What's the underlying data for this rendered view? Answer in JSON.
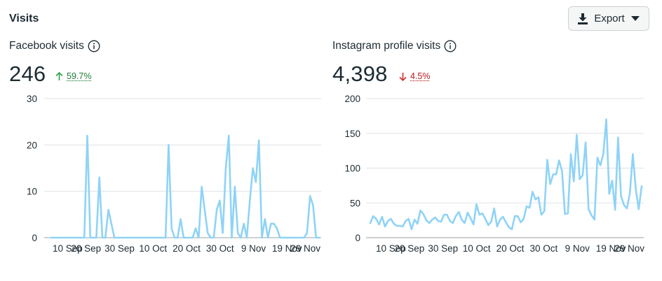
{
  "section_title": "Visits",
  "export_label": "Export",
  "icons": {
    "export": "download-icon",
    "dropdown": "caret-down-icon",
    "info": "info-icon",
    "up": "arrow-up-icon",
    "down": "arrow-down-icon"
  },
  "colors": {
    "line": "#8fd3f7",
    "up": "#31a24c",
    "down": "#d32f2f"
  },
  "facebook": {
    "title": "Facebook visits",
    "value": "246",
    "delta": "59.7%",
    "direction": "up"
  },
  "instagram": {
    "title": "Instagram profile visits",
    "value": "4,398",
    "delta": "4.5%",
    "direction": "down"
  },
  "chart_data": [
    {
      "type": "line",
      "title": "Facebook visits",
      "ylim": [
        0,
        30
      ],
      "yticks": [
        0,
        10,
        20,
        30
      ],
      "xticks": [
        "10 Sep",
        "20 Sep",
        "30 Sep",
        "10 Oct",
        "20 Oct",
        "30 Oct",
        "9 Nov",
        "19 Nov",
        "29 Nov"
      ],
      "values": [
        0,
        0,
        0,
        0,
        0,
        0,
        0,
        0,
        0,
        0,
        0,
        0,
        22,
        0,
        0,
        0,
        13,
        0,
        0,
        6,
        3,
        0,
        0,
        0,
        0,
        0,
        0,
        0,
        0,
        0,
        0,
        0,
        0,
        0,
        0,
        0,
        0,
        0,
        0,
        20,
        2,
        0,
        0,
        4,
        0,
        0,
        0,
        0,
        2,
        0,
        11,
        6,
        1,
        0,
        0,
        6,
        8,
        1,
        15,
        22,
        0,
        11,
        1,
        0,
        3,
        0,
        8,
        15,
        12,
        21,
        0,
        4,
        0,
        3,
        3,
        2,
        0,
        0,
        0,
        0,
        0,
        0,
        0,
        0,
        0,
        1,
        9,
        7,
        0,
        0
      ]
    },
    {
      "type": "line",
      "title": "Instagram profile visits",
      "ylim": [
        0,
        200
      ],
      "yticks": [
        0,
        50,
        100,
        150,
        200
      ],
      "xticks": [
        "10 Sep",
        "20 Sep",
        "30 Sep",
        "10 Oct",
        "20 Oct",
        "30 Oct",
        "9 Nov",
        "19 Nov",
        "29 Nov"
      ],
      "values": [
        21,
        31,
        27,
        19,
        30,
        16,
        24,
        27,
        20,
        17,
        17,
        16,
        24,
        27,
        12,
        26,
        20,
        39,
        34,
        25,
        21,
        26,
        29,
        24,
        23,
        33,
        33,
        24,
        21,
        31,
        37,
        26,
        21,
        36,
        28,
        19,
        48,
        33,
        35,
        27,
        18,
        23,
        42,
        16,
        26,
        30,
        22,
        15,
        12,
        31,
        31,
        22,
        27,
        45,
        43,
        66,
        55,
        58,
        33,
        38,
        112,
        77,
        91,
        91,
        111,
        96,
        34,
        35,
        120,
        81,
        148,
        84,
        90,
        137,
        41,
        32,
        26,
        115,
        104,
        120,
        170,
        63,
        82,
        40,
        144,
        60,
        47,
        42,
        64,
        120,
        70,
        41,
        74
      ]
    }
  ]
}
